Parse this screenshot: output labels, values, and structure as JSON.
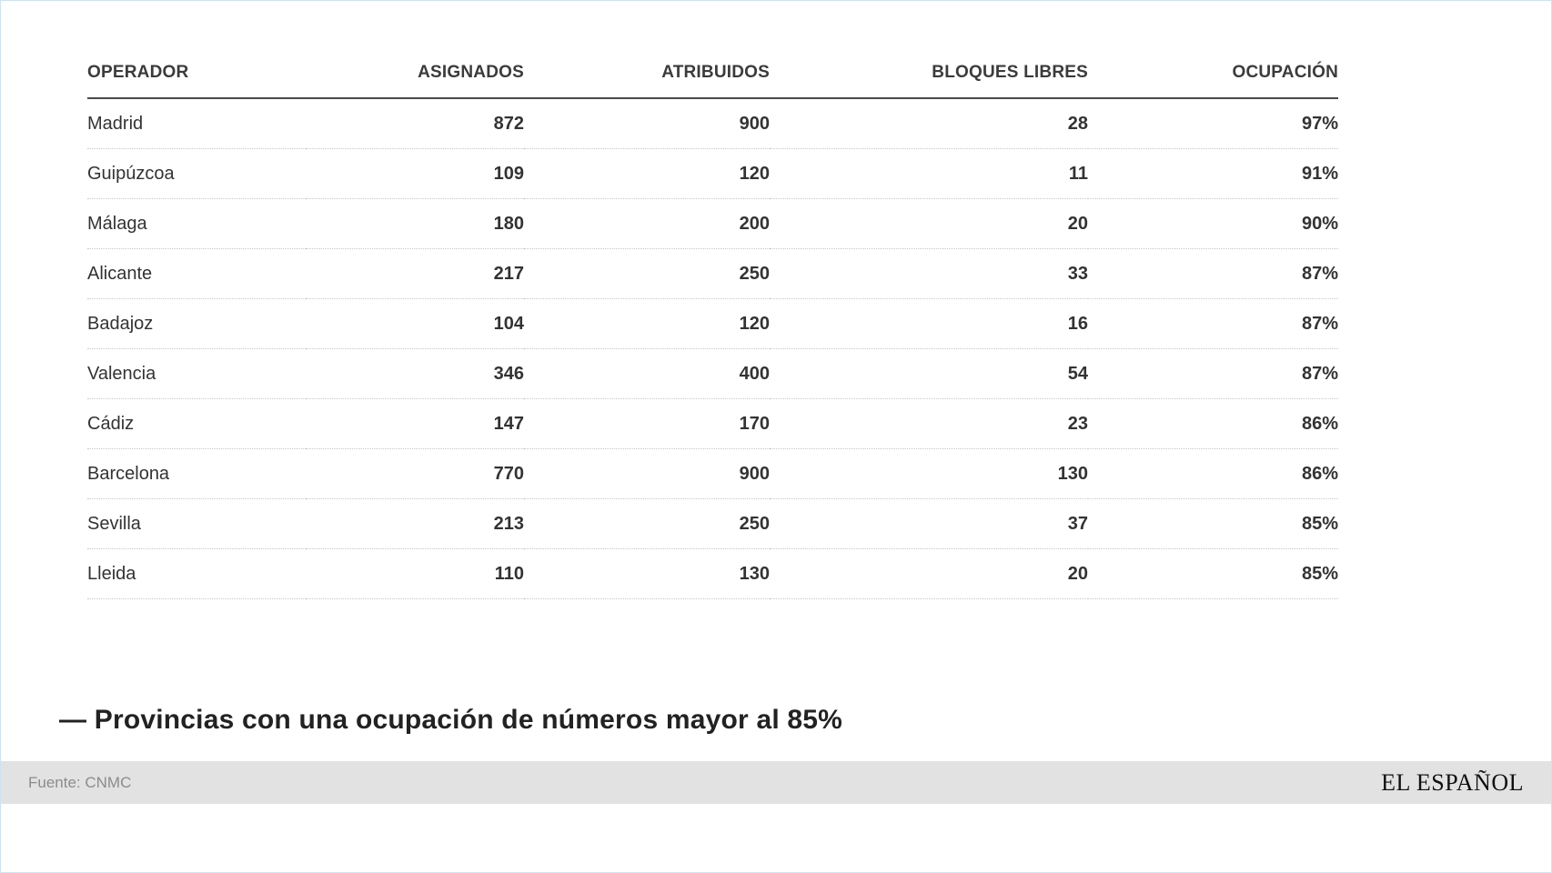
{
  "chart_data": {
    "type": "table",
    "columns": [
      "OPERADOR",
      "ASIGNADOS",
      "ATRIBUIDOS",
      "BLOQUES LIBRES",
      "OCUPACIÓN"
    ],
    "rows": [
      [
        "Madrid",
        "872",
        "900",
        "28",
        "97%"
      ],
      [
        "Guipúzcoa",
        "109",
        "120",
        "11",
        "91%"
      ],
      [
        "Málaga",
        "180",
        "200",
        "20",
        "90%"
      ],
      [
        "Alicante",
        "217",
        "250",
        "33",
        "87%"
      ],
      [
        "Badajoz",
        "104",
        "120",
        "16",
        "87%"
      ],
      [
        "Valencia",
        "346",
        "400",
        "54",
        "87%"
      ],
      [
        "Cádiz",
        "147",
        "170",
        "23",
        "86%"
      ],
      [
        "Barcelona",
        "770",
        "900",
        "130",
        "86%"
      ],
      [
        "Sevilla",
        "213",
        "250",
        "37",
        "85%"
      ],
      [
        "Lleida",
        "110",
        "130",
        "20",
        "85%"
      ]
    ],
    "caption": "— Provincias con una ocupación de números mayor al 85%"
  },
  "footer": {
    "source": "Fuente: CNMC",
    "brand": "EL ESPAÑOL"
  },
  "colors": {
    "header_text": "#3b3b3b",
    "cell_text": "#333333",
    "header_rule": "#4a4a4a",
    "row_separator": "#c6c6c6",
    "footer_background": "#e2e2e2",
    "source_text": "#8c8c8c",
    "brand_text": "#111111",
    "page_border": "#cfe3f0"
  }
}
